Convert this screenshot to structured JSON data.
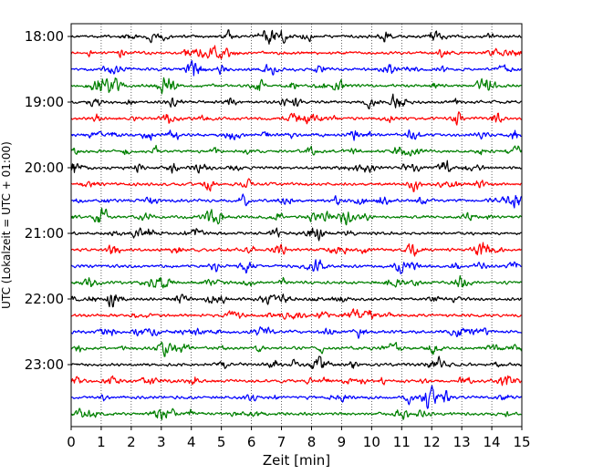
{
  "chart_data": {
    "type": "line",
    "title": "",
    "xlabel": "Zeit  [min]",
    "ylabel": "UTC (Lokalzeit = UTC + 01:00)",
    "xlim": [
      0,
      15
    ],
    "x_ticks": [
      "0",
      "1",
      "2",
      "3",
      "4",
      "5",
      "6",
      "7",
      "8",
      "9",
      "10",
      "11",
      "12",
      "13",
      "14",
      "15"
    ],
    "y_ticks": [
      "18:00",
      "19:00",
      "20:00",
      "21:00",
      "22:00",
      "23:00"
    ],
    "grid": "vertical dotted at each minute",
    "legend": "none",
    "trace_start": "18:00",
    "trace_interval_minutes": 15,
    "trace_count": 24,
    "trace_colors": [
      "#000000",
      "#ff0000",
      "#0000ff",
      "#008000"
    ]
  }
}
